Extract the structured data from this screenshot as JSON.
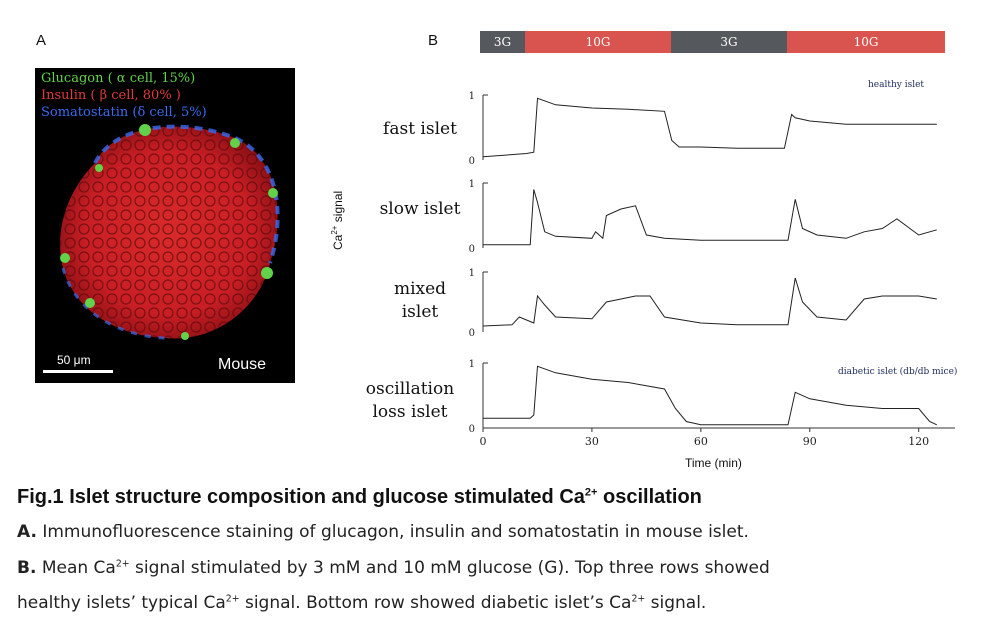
{
  "panel_a": {
    "letter": "A",
    "legend": [
      {
        "text": "Glucagon ( α cell, 15%)",
        "color": "#62d24a"
      },
      {
        "text": "Insulin ( β cell, 80% )",
        "color": "#e23a3a"
      },
      {
        "text": "Somatostatin (δ cell, 5%)",
        "color": "#3a6cf0"
      }
    ],
    "scale_bar": "50 μm",
    "species": "Mouse"
  },
  "panel_b": {
    "letter": "B",
    "conditions": [
      {
        "label": "3G",
        "color": "#55595e"
      },
      {
        "label": "10G",
        "color": "#d9534f"
      },
      {
        "label": "3G",
        "color": "#55595e"
      },
      {
        "label": "10G",
        "color": "#d9534f"
      }
    ],
    "rows": [
      {
        "label_line1": "fast islet",
        "label_line2": "",
        "y_max": "1",
        "y_min": "0"
      },
      {
        "label_line1": "slow islet",
        "label_line2": "",
        "y_max": "1",
        "y_min": "0"
      },
      {
        "label_line1": "mixed",
        "label_line2": "islet",
        "y_max": "1",
        "y_min": "0"
      },
      {
        "label_line1": "oscillation",
        "label_line2": "loss islet",
        "y_max": "1",
        "y_min": "0"
      }
    ],
    "notes": {
      "healthy": "healthy islet",
      "diabetic": "diabetic islet (db/db mice)"
    },
    "ylabel_main": "Ca",
    "ylabel_sup": "2+",
    "ylabel_rest": " signal",
    "xlabel": "Time (min)",
    "xticks": [
      "0",
      "30",
      "60",
      "90",
      "120"
    ]
  },
  "caption": {
    "title_main": "Fig.1 Islet structure composition and glucose stimulated Ca",
    "title_sup": "2+",
    "title_end": " oscillation",
    "a_letter": "A.",
    "a_text": " Immunofluorescence staining of glucagon, insulin and somatostatin in mouse islet.",
    "b_letter": "B.",
    "b_text1": " Mean Ca",
    "b_sup1": "2+",
    "b_text2": " signal stimulated by 3 mM and 10 mM glucose (G). Top three rows showed",
    "line3_text1": "healthy islets’ typical Ca",
    "line3_sup1": "2+",
    "line3_text2": " signal. Bottom row showed diabetic islet’s Ca",
    "line3_sup2": "2+",
    "line3_text3": " signal."
  },
  "chart_data": {
    "type": "line",
    "title": "",
    "xlabel": "Time (min)",
    "ylabel": "Ca2+ signal",
    "xlim": [
      0,
      130
    ],
    "ylim": [
      0,
      1
    ],
    "xticks": [
      0,
      30,
      60,
      90,
      120
    ],
    "stimulation": [
      {
        "label": "3G",
        "start": 0,
        "end": 14
      },
      {
        "label": "10G",
        "start": 14,
        "end": 52
      },
      {
        "label": "3G",
        "start": 52,
        "end": 84
      },
      {
        "label": "10G",
        "start": 84,
        "end": 128
      }
    ],
    "series": [
      {
        "name": "fast islet",
        "x": [
          0,
          12,
          14,
          15,
          20,
          30,
          40,
          50,
          52,
          54,
          60,
          70,
          83,
          85,
          86,
          90,
          100,
          110,
          120,
          125
        ],
        "y": [
          0.05,
          0.1,
          0.12,
          0.95,
          0.85,
          0.8,
          0.78,
          0.75,
          0.3,
          0.2,
          0.2,
          0.18,
          0.18,
          0.7,
          0.65,
          0.6,
          0.55,
          0.55,
          0.55,
          0.55
        ]
      },
      {
        "name": "slow islet",
        "x": [
          0,
          13,
          14,
          15,
          17,
          20,
          30,
          31,
          33,
          34,
          38,
          42,
          45,
          50,
          60,
          70,
          84,
          86,
          88,
          92,
          100,
          105,
          110,
          114,
          120,
          125
        ],
        "y": [
          0.05,
          0.05,
          0.9,
          0.7,
          0.25,
          0.18,
          0.15,
          0.25,
          0.15,
          0.5,
          0.6,
          0.65,
          0.2,
          0.15,
          0.12,
          0.12,
          0.12,
          0.75,
          0.3,
          0.2,
          0.15,
          0.25,
          0.3,
          0.45,
          0.2,
          0.28
        ]
      },
      {
        "name": "mixed islet",
        "x": [
          0,
          8,
          10,
          14,
          15,
          17,
          20,
          30,
          34,
          38,
          42,
          46,
          50,
          60,
          70,
          84,
          86,
          88,
          92,
          100,
          105,
          110,
          115,
          120,
          125
        ],
        "y": [
          0.1,
          0.12,
          0.25,
          0.15,
          0.6,
          0.45,
          0.25,
          0.22,
          0.5,
          0.55,
          0.6,
          0.6,
          0.25,
          0.15,
          0.12,
          0.12,
          0.9,
          0.5,
          0.25,
          0.2,
          0.55,
          0.6,
          0.6,
          0.6,
          0.55
        ]
      },
      {
        "name": "oscillation loss islet",
        "x": [
          0,
          13,
          14,
          15,
          20,
          30,
          40,
          50,
          53,
          56,
          60,
          70,
          84,
          86,
          90,
          100,
          110,
          120,
          123,
          125
        ],
        "y": [
          0.15,
          0.15,
          0.2,
          0.95,
          0.85,
          0.75,
          0.7,
          0.6,
          0.3,
          0.1,
          0.05,
          0.05,
          0.05,
          0.55,
          0.45,
          0.35,
          0.3,
          0.3,
          0.1,
          0.05
        ]
      }
    ]
  }
}
